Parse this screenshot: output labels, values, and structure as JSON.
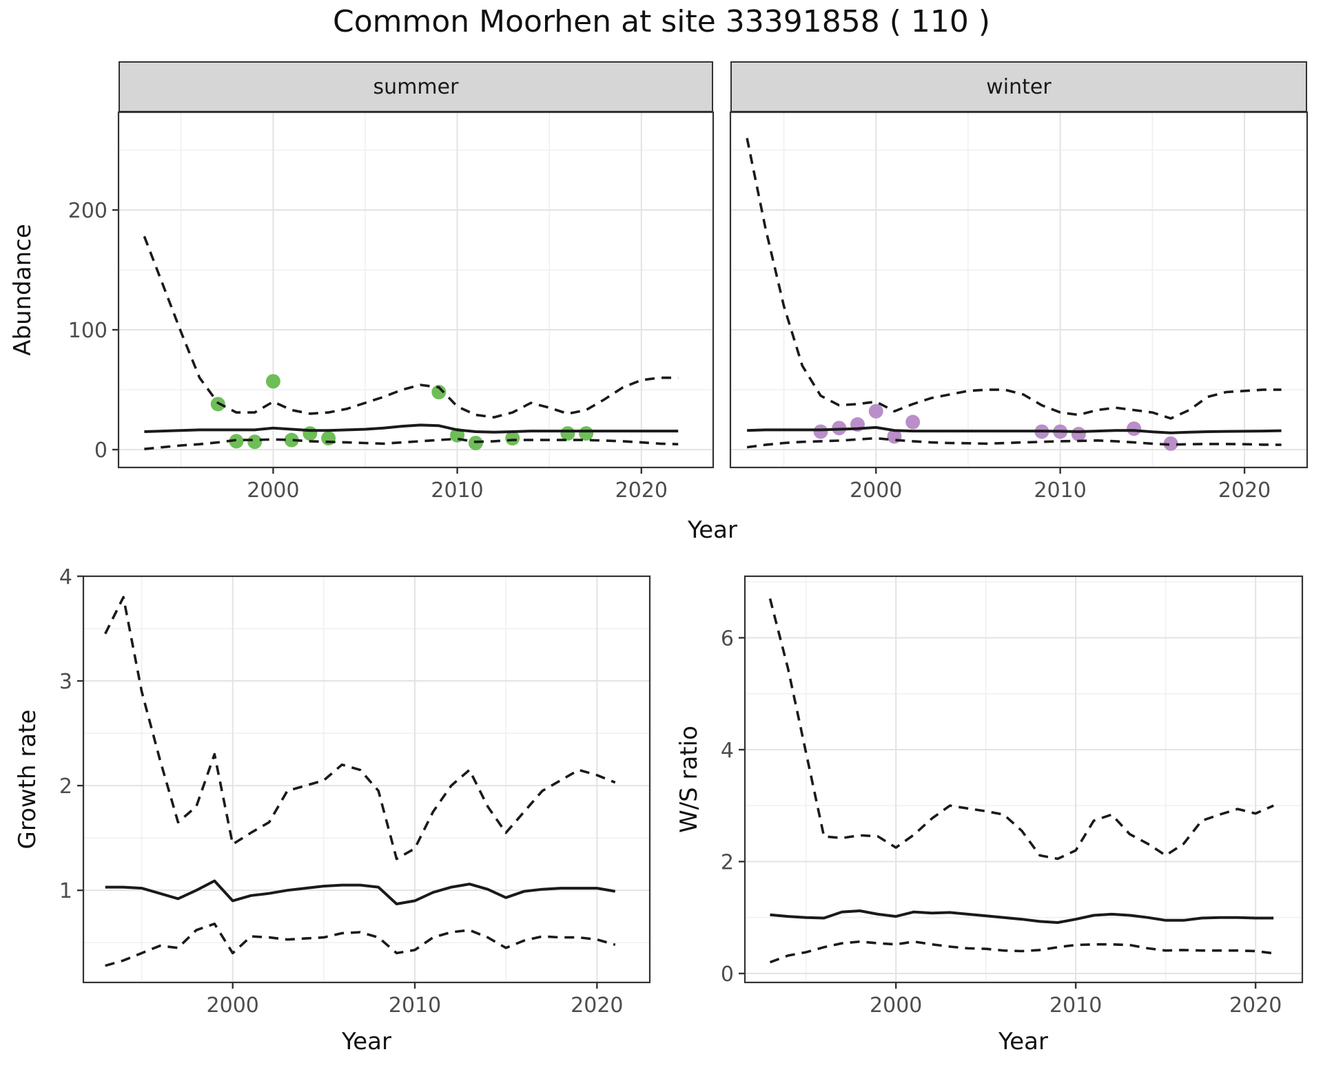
{
  "title": "Common Moorhen at site 33391858 ( 110 )",
  "facets": {
    "summer_label": "summer",
    "winter_label": "winter"
  },
  "axis_titles": {
    "abundance": "Abundance",
    "year": "Year",
    "growth": "Growth rate",
    "ws": "W/S ratio"
  },
  "colors": {
    "point_summer": "#6ebe58",
    "point_winter": "#ba8fc9",
    "line": "#1a1a1a",
    "grid_major": "#e3e3e3",
    "grid_minor": "#f0f0f0",
    "strip_bg": "#d6d6d6",
    "strip_border": "#333333",
    "panel_border": "#333333",
    "tick_mark": "#333333",
    "tick_label": "#4d4d4d",
    "background": "#ffffff"
  },
  "chart_data": [
    {
      "id": "abundance-summer",
      "type": "line",
      "facet": "summer",
      "xlabel": "Year",
      "ylabel": "Abundance",
      "xlim": [
        1991.6,
        2023.9
      ],
      "ylim": [
        -14.9,
        281.6
      ],
      "xticks": [
        2000,
        2010,
        2020
      ],
      "xticks_minor": [
        1995,
        2005,
        2015
      ],
      "yticks": [
        0,
        100,
        200
      ],
      "yticks_minor": [
        50,
        150,
        250
      ],
      "x": [
        1993,
        1994,
        1995,
        1996,
        1997,
        1998,
        1999,
        2000,
        2001,
        2002,
        2003,
        2004,
        2005,
        2006,
        2007,
        2008,
        2009,
        2010,
        2011,
        2012,
        2013,
        2014,
        2015,
        2016,
        2017,
        2018,
        2019,
        2020,
        2021,
        2022
      ],
      "series": [
        {
          "name": "upper_ci",
          "linetype": "dashed",
          "values": [
            178,
            138,
            98,
            60,
            39,
            31,
            31,
            40,
            33,
            30,
            31,
            34,
            39,
            44,
            50,
            54,
            52,
            36,
            29,
            27,
            31,
            39,
            35,
            30,
            33,
            42,
            52,
            58,
            60,
            60
          ]
        },
        {
          "name": "median",
          "linetype": "solid",
          "values": [
            15,
            15.5,
            16,
            16.5,
            16.5,
            16.5,
            16.5,
            18,
            17,
            16,
            16,
            16.5,
            17,
            18,
            19.5,
            20.5,
            20,
            16.5,
            15,
            14.5,
            15,
            15.5,
            15.5,
            15.5,
            15.5,
            15.5,
            15.5,
            15.5,
            15.5,
            15.5
          ]
        },
        {
          "name": "lower_ci",
          "linetype": "dashed",
          "values": [
            0.5,
            2,
            3.5,
            4.5,
            6,
            8,
            8,
            8.5,
            8,
            7,
            6.5,
            6,
            5.5,
            5,
            6,
            7,
            8,
            9,
            6.5,
            7,
            8,
            8,
            8,
            8,
            8,
            7.5,
            7,
            6,
            5,
            4.5
          ]
        }
      ],
      "points": {
        "name": "observed_abundance_summer",
        "color": "#6ebe58",
        "data": [
          [
            1997,
            38
          ],
          [
            1998,
            7
          ],
          [
            1999,
            6.5
          ],
          [
            2000,
            57
          ],
          [
            2001,
            8
          ],
          [
            2002,
            13.5
          ],
          [
            2003,
            9.5
          ],
          [
            2009,
            48
          ],
          [
            2010,
            12
          ],
          [
            2011,
            5.5
          ],
          [
            2013,
            9.5
          ],
          [
            2016,
            13.5
          ],
          [
            2017,
            13.5
          ]
        ]
      }
    },
    {
      "id": "abundance-winter",
      "type": "line",
      "facet": "winter",
      "xlabel": "Year",
      "ylabel": "Abundance",
      "xlim": [
        1992.1,
        2023.4
      ],
      "ylim": [
        -14.9,
        281.6
      ],
      "xticks": [
        2000,
        2010,
        2020
      ],
      "xticks_minor": [
        1995,
        2005,
        2015
      ],
      "yticks": [
        0,
        100,
        200
      ],
      "yticks_minor": [
        50,
        150,
        250
      ],
      "x": [
        1993,
        1994,
        1995,
        1996,
        1997,
        1998,
        1999,
        2000,
        2001,
        2002,
        2003,
        2004,
        2005,
        2006,
        2007,
        2008,
        2009,
        2010,
        2011,
        2012,
        2013,
        2014,
        2015,
        2016,
        2017,
        2018,
        2019,
        2020,
        2021,
        2022
      ],
      "series": [
        {
          "name": "upper_ci",
          "linetype": "dashed",
          "values": [
            260,
            185,
            120,
            70,
            45,
            37,
            38,
            40,
            32,
            38,
            43,
            46,
            49,
            50,
            50,
            46,
            37,
            31,
            29,
            33,
            35,
            33,
            31,
            26,
            33,
            44,
            48,
            49,
            50,
            50
          ]
        },
        {
          "name": "median",
          "linetype": "solid",
          "values": [
            16,
            16.5,
            16.5,
            16.5,
            16.5,
            17,
            17.5,
            18.5,
            16,
            15.5,
            15.5,
            15.5,
            15.5,
            15.5,
            15.5,
            15.5,
            15.5,
            15.3,
            15,
            15.5,
            16,
            16,
            14.8,
            14,
            14.5,
            15,
            15.2,
            15.3,
            15.5,
            15.8
          ]
        },
        {
          "name": "lower_ci",
          "linetype": "dashed",
          "values": [
            2,
            4,
            5.5,
            6.5,
            7,
            7.5,
            8.5,
            9.5,
            8,
            7,
            6,
            5.5,
            5.3,
            5,
            5.5,
            6,
            6.5,
            7,
            7.2,
            7.6,
            7,
            6,
            5,
            4.1,
            4.5,
            4.7,
            4.7,
            4.5,
            4.1,
            4
          ]
        }
      ],
      "points": {
        "name": "observed_abundance_winter",
        "color": "#ba8fc9",
        "data": [
          [
            1997,
            15
          ],
          [
            1998,
            18
          ],
          [
            1999,
            21
          ],
          [
            2000,
            32
          ],
          [
            2001,
            11
          ],
          [
            2002,
            23
          ],
          [
            2009,
            15
          ],
          [
            2010,
            15
          ],
          [
            2011,
            13
          ],
          [
            2014,
            17.5
          ],
          [
            2016,
            5
          ]
        ]
      }
    },
    {
      "id": "growth-rate",
      "type": "line",
      "facet": null,
      "xlabel": "Year",
      "ylabel": "Growth rate",
      "xlim": [
        1991.8,
        2022.9
      ],
      "ylim": [
        0.12,
        4.0
      ],
      "xticks": [
        2000,
        2010,
        2020
      ],
      "xticks_minor": [
        1995,
        2005,
        2015
      ],
      "yticks": [
        1,
        2,
        3,
        4
      ],
      "yticks_minor": [
        0.5,
        1.5,
        2.5,
        3.5
      ],
      "x": [
        1993,
        1994,
        1995,
        1996,
        1997,
        1998,
        1999,
        2000,
        2001,
        2002,
        2003,
        2004,
        2005,
        2006,
        2007,
        2008,
        2009,
        2010,
        2011,
        2012,
        2013,
        2014,
        2015,
        2016,
        2017,
        2018,
        2019,
        2020,
        2021
      ],
      "series": [
        {
          "name": "upper_ci",
          "linetype": "dashed",
          "values": [
            3.45,
            3.8,
            2.9,
            2.25,
            1.65,
            1.8,
            2.3,
            1.44,
            1.55,
            1.65,
            1.95,
            2.0,
            2.05,
            2.2,
            2.15,
            1.95,
            1.3,
            1.4,
            1.75,
            2.0,
            2.15,
            1.8,
            1.55,
            1.75,
            1.95,
            2.05,
            2.15,
            2.1,
            2.03
          ]
        },
        {
          "name": "median",
          "linetype": "solid",
          "values": [
            1.03,
            1.03,
            1.02,
            0.97,
            0.92,
            1.0,
            1.09,
            0.9,
            0.95,
            0.97,
            1.0,
            1.02,
            1.04,
            1.05,
            1.05,
            1.03,
            0.87,
            0.9,
            0.98,
            1.03,
            1.06,
            1.01,
            0.93,
            0.99,
            1.01,
            1.02,
            1.02,
            1.02,
            0.99
          ]
        },
        {
          "name": "lower_ci",
          "linetype": "dashed",
          "values": [
            0.28,
            0.33,
            0.4,
            0.47,
            0.45,
            0.62,
            0.68,
            0.4,
            0.56,
            0.55,
            0.53,
            0.54,
            0.55,
            0.59,
            0.6,
            0.55,
            0.4,
            0.43,
            0.55,
            0.6,
            0.62,
            0.55,
            0.45,
            0.52,
            0.56,
            0.55,
            0.55,
            0.53,
            0.48
          ]
        }
      ],
      "points": null
    },
    {
      "id": "ws-ratio",
      "type": "line",
      "facet": null,
      "xlabel": "Year",
      "ylabel": "W/S ratio",
      "xlim": [
        1991.6,
        2022.6
      ],
      "ylim": [
        -0.16,
        7.1
      ],
      "xticks": [
        2000,
        2010,
        2020
      ],
      "xticks_minor": [
        1995,
        2005,
        2015
      ],
      "yticks": [
        0,
        2,
        4,
        6
      ],
      "yticks_minor": [
        1,
        3,
        5,
        7
      ],
      "x": [
        1993,
        1994,
        1995,
        1996,
        1997,
        1998,
        1999,
        2000,
        2001,
        2002,
        2003,
        2004,
        2005,
        2006,
        2007,
        2008,
        2009,
        2010,
        2011,
        2012,
        2013,
        2014,
        2015,
        2016,
        2017,
        2018,
        2019,
        2020,
        2021
      ],
      "series": [
        {
          "name": "upper_ci",
          "linetype": "dashed",
          "values": [
            6.7,
            5.45,
            3.95,
            2.45,
            2.42,
            2.47,
            2.45,
            2.25,
            2.48,
            2.77,
            3.0,
            2.95,
            2.9,
            2.84,
            2.55,
            2.11,
            2.05,
            2.2,
            2.73,
            2.84,
            2.49,
            2.32,
            2.11,
            2.32,
            2.73,
            2.84,
            2.94,
            2.86,
            3.0
          ]
        },
        {
          "name": "median",
          "linetype": "solid",
          "values": [
            1.05,
            1.02,
            1.0,
            0.99,
            1.1,
            1.12,
            1.06,
            1.02,
            1.1,
            1.08,
            1.09,
            1.06,
            1.03,
            1.0,
            0.97,
            0.93,
            0.91,
            0.97,
            1.04,
            1.06,
            1.04,
            1.0,
            0.95,
            0.95,
            0.99,
            1.0,
            1.0,
            0.99,
            0.99
          ]
        },
        {
          "name": "lower_ci",
          "linetype": "dashed",
          "values": [
            0.2,
            0.32,
            0.38,
            0.47,
            0.54,
            0.57,
            0.54,
            0.52,
            0.57,
            0.52,
            0.48,
            0.45,
            0.44,
            0.41,
            0.4,
            0.42,
            0.47,
            0.51,
            0.52,
            0.52,
            0.51,
            0.45,
            0.41,
            0.42,
            0.41,
            0.41,
            0.41,
            0.4,
            0.36
          ]
        }
      ],
      "points": null
    }
  ]
}
